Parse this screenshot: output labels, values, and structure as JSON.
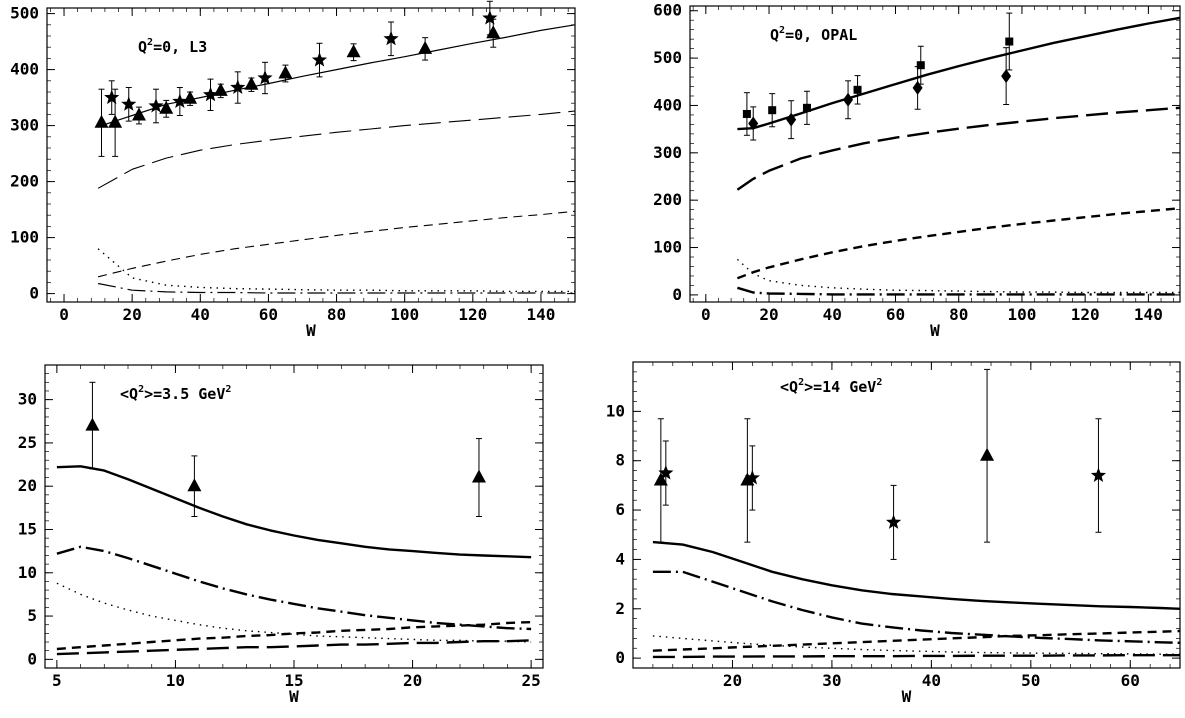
{
  "chart_data": [
    {
      "type": "line",
      "annotation": {
        "pre": "Q",
        "sup": "2",
        "post": "=0, L3"
      },
      "xlabel": "W",
      "xlim": [
        -5,
        150
      ],
      "ylim": [
        -15,
        510
      ],
      "xticks": [
        0,
        20,
        40,
        60,
        80,
        100,
        120,
        140
      ],
      "yticks": [
        0,
        100,
        200,
        300,
        400,
        500
      ],
      "x": [
        10,
        20,
        30,
        40,
        50,
        60,
        70,
        80,
        90,
        100,
        110,
        120,
        130,
        140,
        150
      ],
      "series": [
        {
          "style": "solid-thin",
          "values": [
            298,
            318,
            338,
            350,
            363,
            375,
            388,
            400,
            412,
            423,
            435,
            447,
            458,
            470,
            480
          ]
        },
        {
          "style": "longdash-thin",
          "values": [
            188,
            222,
            242,
            256,
            266,
            274,
            281,
            288,
            294,
            300,
            305,
            310,
            315,
            320,
            326
          ]
        },
        {
          "style": "dash-thin",
          "values": [
            30,
            45,
            58,
            70,
            80,
            88,
            96,
            104,
            111,
            118,
            124,
            130,
            136,
            141,
            147
          ]
        },
        {
          "style": "dot",
          "values": [
            80,
            28,
            15,
            11,
            9,
            8,
            7,
            6,
            6,
            5,
            5,
            5,
            4,
            4,
            4
          ]
        },
        {
          "style": "dashdot-thin",
          "values": [
            18,
            6,
            3,
            2,
            2,
            1,
            1,
            1,
            1,
            1,
            1,
            1,
            1,
            1,
            1
          ]
        }
      ],
      "points": [
        {
          "marker": "triangle",
          "x": 11,
          "y": 305,
          "err": 60
        },
        {
          "marker": "star",
          "x": 14,
          "y": 350,
          "err": 30
        },
        {
          "marker": "triangle",
          "x": 15,
          "y": 305,
          "err": 60
        },
        {
          "marker": "star",
          "x": 19,
          "y": 338,
          "err": 30
        },
        {
          "marker": "triangle",
          "x": 22,
          "y": 318,
          "err": 15
        },
        {
          "marker": "star",
          "x": 27,
          "y": 335,
          "err": 30
        },
        {
          "marker": "triangle",
          "x": 30,
          "y": 330,
          "err": 15
        },
        {
          "marker": "star",
          "x": 34,
          "y": 343,
          "err": 25
        },
        {
          "marker": "triangle",
          "x": 37,
          "y": 348,
          "err": 12
        },
        {
          "marker": "star",
          "x": 43,
          "y": 355,
          "err": 28
        },
        {
          "marker": "triangle",
          "x": 46,
          "y": 362,
          "err": 12
        },
        {
          "marker": "star",
          "x": 51,
          "y": 368,
          "err": 28
        },
        {
          "marker": "triangle",
          "x": 55,
          "y": 373,
          "err": 12
        },
        {
          "marker": "star",
          "x": 59,
          "y": 385,
          "err": 28
        },
        {
          "marker": "triangle",
          "x": 65,
          "y": 393,
          "err": 15
        },
        {
          "marker": "star",
          "x": 75,
          "y": 417,
          "err": 30
        },
        {
          "marker": "triangle",
          "x": 85,
          "y": 431,
          "err": 15
        },
        {
          "marker": "star",
          "x": 96,
          "y": 455,
          "err": 30
        },
        {
          "marker": "triangle",
          "x": 106,
          "y": 437,
          "err": 20
        },
        {
          "marker": "star",
          "x": 125,
          "y": 492,
          "err": 30
        },
        {
          "marker": "triangle",
          "x": 126,
          "y": 465,
          "err": 25
        }
      ]
    },
    {
      "type": "line",
      "annotation": {
        "pre": "Q",
        "sup": "2",
        "post": "=0, OPAL"
      },
      "xlabel": "W",
      "xlim": [
        -5,
        150
      ],
      "ylim": [
        -15,
        610
      ],
      "xticks": [
        0,
        20,
        40,
        60,
        80,
        100,
        120,
        140
      ],
      "yticks": [
        0,
        100,
        200,
        300,
        400,
        500,
        600
      ],
      "x": [
        10,
        15,
        20,
        30,
        40,
        50,
        60,
        70,
        80,
        90,
        100,
        110,
        120,
        130,
        140,
        150
      ],
      "series": [
        {
          "style": "solid-thick",
          "values": [
            350,
            352,
            362,
            383,
            405,
            425,
            445,
            465,
            483,
            500,
            516,
            532,
            546,
            560,
            573,
            585
          ]
        },
        {
          "style": "longdash-thick",
          "values": [
            222,
            245,
            262,
            288,
            305,
            320,
            332,
            342,
            351,
            359,
            366,
            373,
            379,
            385,
            390,
            395
          ]
        },
        {
          "style": "dash-thick",
          "values": [
            35,
            48,
            58,
            75,
            90,
            103,
            114,
            124,
            133,
            142,
            150,
            157,
            164,
            171,
            177,
            183
          ]
        },
        {
          "style": "dot",
          "values": [
            75,
            45,
            30,
            20,
            15,
            12,
            10,
            9,
            8,
            7,
            6,
            6,
            5,
            5,
            5,
            5
          ]
        },
        {
          "style": "dashdot-thick",
          "values": [
            15,
            5,
            3,
            2,
            1,
            1,
            1,
            1,
            1,
            1,
            1,
            1,
            1,
            1,
            1,
            1
          ]
        }
      ],
      "points": [
        {
          "marker": "square",
          "x": 13,
          "y": 382,
          "err": 45
        },
        {
          "marker": "diamond",
          "x": 15,
          "y": 362,
          "err": 35
        },
        {
          "marker": "square",
          "x": 21,
          "y": 390,
          "err": 35
        },
        {
          "marker": "diamond",
          "x": 27,
          "y": 370,
          "err": 40
        },
        {
          "marker": "square",
          "x": 32,
          "y": 395,
          "err": 35
        },
        {
          "marker": "diamond",
          "x": 45,
          "y": 412,
          "err": 40
        },
        {
          "marker": "square",
          "x": 48,
          "y": 433,
          "err": 30
        },
        {
          "marker": "diamond",
          "x": 67,
          "y": 437,
          "err": 45
        },
        {
          "marker": "square",
          "x": 68,
          "y": 485,
          "err": 40
        },
        {
          "marker": "diamond",
          "x": 95,
          "y": 462,
          "err": 60
        },
        {
          "marker": "square",
          "x": 96,
          "y": 535,
          "err": 60
        }
      ]
    },
    {
      "type": "line",
      "annotation": {
        "pre": "<Q",
        "sup": "2",
        "post": ">=3.5 GeV",
        "sup2": "2"
      },
      "xlabel": "W",
      "xlim": [
        4.5,
        25.5
      ],
      "ylim": [
        -1,
        34
      ],
      "xticks": [
        5,
        10,
        15,
        20,
        25
      ],
      "yticks": [
        0,
        5,
        10,
        15,
        20,
        25,
        30
      ],
      "x": [
        5,
        6,
        7,
        8,
        9,
        10,
        11,
        12,
        13,
        14,
        15,
        16,
        17,
        18,
        19,
        20,
        21,
        22,
        23,
        24,
        25
      ],
      "series": [
        {
          "style": "solid-thick",
          "values": [
            22.2,
            22.3,
            21.8,
            20.8,
            19.7,
            18.6,
            17.5,
            16.5,
            15.6,
            14.9,
            14.3,
            13.8,
            13.4,
            13.0,
            12.7,
            12.5,
            12.3,
            12.1,
            12.0,
            11.9,
            11.8
          ]
        },
        {
          "style": "dashdot-thick",
          "values": [
            12.2,
            13.0,
            12.5,
            11.7,
            10.8,
            9.9,
            9.0,
            8.2,
            7.5,
            6.9,
            6.4,
            5.9,
            5.5,
            5.1,
            4.8,
            4.5,
            4.2,
            4.0,
            3.8,
            3.6,
            3.5
          ]
        },
        {
          "style": "dot",
          "values": [
            8.8,
            7.5,
            6.5,
            5.7,
            5.0,
            4.5,
            4.0,
            3.6,
            3.3,
            3.1,
            2.9,
            2.7,
            2.6,
            2.5,
            2.4,
            2.3,
            2.2,
            2.2,
            2.1,
            2.1,
            2.0
          ]
        },
        {
          "style": "dash-thick",
          "values": [
            1.2,
            1.4,
            1.6,
            1.8,
            2.0,
            2.2,
            2.4,
            2.5,
            2.7,
            2.8,
            3.0,
            3.1,
            3.3,
            3.4,
            3.5,
            3.7,
            3.8,
            3.9,
            4.0,
            4.2,
            4.3
          ]
        },
        {
          "style": "longdash-thick",
          "values": [
            0.6,
            0.7,
            0.8,
            0.9,
            1.0,
            1.1,
            1.2,
            1.3,
            1.4,
            1.4,
            1.5,
            1.6,
            1.7,
            1.7,
            1.8,
            1.9,
            1.9,
            2.0,
            2.1,
            2.1,
            2.2
          ]
        }
      ],
      "points": [
        {
          "marker": "triangle",
          "x": 6.5,
          "y": 27,
          "err": 5
        },
        {
          "marker": "triangle",
          "x": 10.8,
          "y": 20,
          "err": 3.5
        },
        {
          "marker": "triangle",
          "x": 22.8,
          "y": 21,
          "err": 4.5
        }
      ]
    },
    {
      "type": "line",
      "annotation": {
        "pre": "<Q",
        "sup": "2",
        "post": ">=14 GeV",
        "sup2": "2"
      },
      "xlabel": "W",
      "xlim": [
        10,
        65
      ],
      "ylim": [
        -0.4,
        12
      ],
      "xticks": [
        20,
        30,
        40,
        50,
        60
      ],
      "yticks": [
        0,
        2,
        4,
        6,
        8,
        10
      ],
      "x": [
        12,
        15,
        18,
        21,
        24,
        27,
        30,
        33,
        36,
        39,
        42,
        45,
        48,
        51,
        54,
        57,
        60,
        63,
        65
      ],
      "series": [
        {
          "style": "solid-thick",
          "values": [
            4.7,
            4.6,
            4.3,
            3.9,
            3.5,
            3.2,
            2.95,
            2.75,
            2.6,
            2.5,
            2.4,
            2.32,
            2.26,
            2.2,
            2.15,
            2.1,
            2.07,
            2.03,
            2.0
          ]
        },
        {
          "style": "dashdot-thick",
          "values": [
            3.5,
            3.5,
            3.1,
            2.7,
            2.3,
            1.95,
            1.65,
            1.4,
            1.25,
            1.12,
            1.02,
            0.95,
            0.88,
            0.82,
            0.77,
            0.72,
            0.68,
            0.64,
            0.62
          ]
        },
        {
          "style": "dot",
          "values": [
            0.9,
            0.8,
            0.7,
            0.6,
            0.52,
            0.45,
            0.4,
            0.35,
            0.31,
            0.28,
            0.25,
            0.23,
            0.21,
            0.2,
            0.19,
            0.18,
            0.17,
            0.16,
            0.16
          ]
        },
        {
          "style": "dash-thick",
          "values": [
            0.3,
            0.35,
            0.4,
            0.45,
            0.5,
            0.55,
            0.6,
            0.65,
            0.7,
            0.75,
            0.8,
            0.85,
            0.9,
            0.93,
            0.97,
            1.0,
            1.04,
            1.07,
            1.1
          ]
        },
        {
          "style": "longdash-thick",
          "values": [
            0.05,
            0.05,
            0.06,
            0.06,
            0.07,
            0.07,
            0.08,
            0.08,
            0.08,
            0.09,
            0.09,
            0.1,
            0.1,
            0.1,
            0.11,
            0.11,
            0.12,
            0.12,
            0.12
          ]
        }
      ],
      "points": [
        {
          "marker": "triangle",
          "x": 12.8,
          "y": 7.2,
          "err": 2.5
        },
        {
          "marker": "star",
          "x": 13.3,
          "y": 7.5,
          "err": 1.3
        },
        {
          "marker": "triangle",
          "x": 21.5,
          "y": 7.2,
          "err": 2.5
        },
        {
          "marker": "star",
          "x": 22.0,
          "y": 7.3,
          "err": 1.3
        },
        {
          "marker": "star",
          "x": 36.2,
          "y": 5.5,
          "err": 1.5
        },
        {
          "marker": "triangle",
          "x": 45.6,
          "y": 8.2,
          "err": 3.5
        },
        {
          "marker": "star",
          "x": 56.8,
          "y": 7.4,
          "err": 2.3
        }
      ]
    }
  ]
}
